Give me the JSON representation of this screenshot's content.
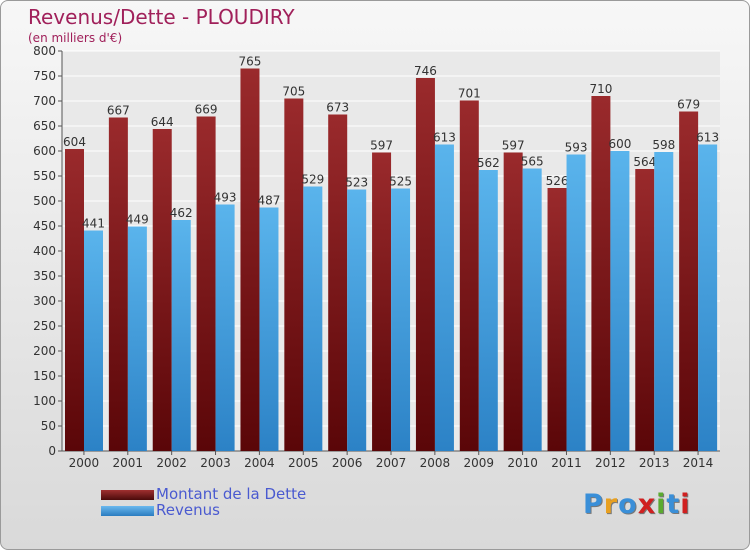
{
  "title": "Revenus/Dette - PLOUDIRY",
  "subtitle": "(en milliers d'€)",
  "logo": {
    "text": "Proxiti",
    "letters": [
      "P",
      "r",
      "o",
      "x",
      "i",
      "t",
      "i"
    ],
    "colors": [
      "#3a8fd8",
      "#e8a020",
      "#3a8fd8",
      "#d02020",
      "#5aaa30",
      "#3a8fd8",
      "#d02020"
    ]
  },
  "colors": {
    "debt": "#8c1f22",
    "revenue": "#4aa3e0",
    "title": "#a0205a",
    "legend_text": "#4a5ad0"
  },
  "chart_data": {
    "type": "bar",
    "title": "Revenus/Dette - PLOUDIRY",
    "ylabel": "(en milliers d'€)",
    "ylim": [
      0,
      800
    ],
    "yticks": [
      0,
      50,
      100,
      150,
      200,
      250,
      300,
      350,
      400,
      450,
      500,
      550,
      600,
      650,
      700,
      750,
      800
    ],
    "grid": true,
    "legend": "bottom-left",
    "categories": [
      "2000",
      "2001",
      "2002",
      "2003",
      "2004",
      "2005",
      "2006",
      "2007",
      "2008",
      "2009",
      "2010",
      "2011",
      "2012",
      "2013",
      "2014"
    ],
    "series": [
      {
        "name": "Montant de la Dette",
        "color": "#8c1f22",
        "values": [
          604,
          667,
          644,
          669,
          765,
          705,
          673,
          597,
          746,
          701,
          597,
          526,
          710,
          564,
          679
        ]
      },
      {
        "name": "Revenus",
        "color": "#4aa3e0",
        "values": [
          441,
          449,
          462,
          493,
          487,
          529,
          523,
          525,
          613,
          562,
          565,
          593,
          600,
          598,
          613
        ]
      }
    ]
  }
}
